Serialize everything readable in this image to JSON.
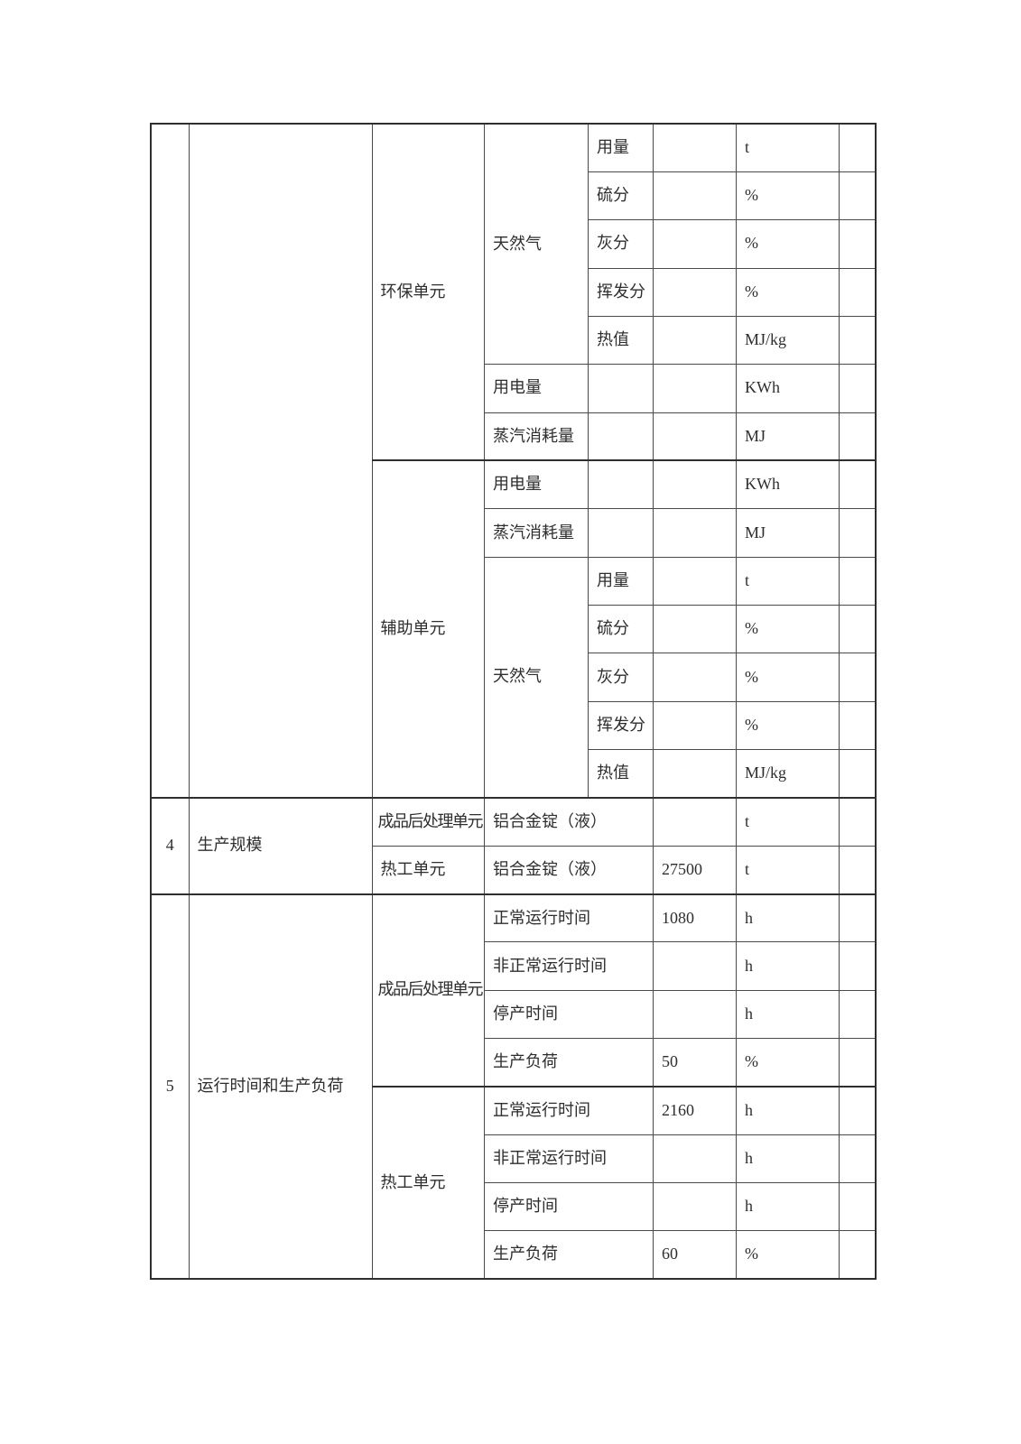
{
  "page": {
    "background_color": "#ffffff",
    "text_color": "#2e2e2e",
    "grid_line_color": "#4a4a4a",
    "section_line_color": "#2f2f2f"
  },
  "table": {
    "description_rows": [
      {
        "cells": [
          {
            "t": "",
            "n": "row-index-cell",
            "rs": 14
          },
          {
            "t": "",
            "n": "category-cell",
            "rs": 14
          },
          {
            "t": "环保单元",
            "n": "unit-group-cell",
            "rs": 7
          },
          {
            "t": "天然气",
            "n": "item-cell",
            "rs": 5
          },
          {
            "t": "用量",
            "n": "sub-item-cell"
          },
          {
            "t": "",
            "n": "value-cell"
          },
          {
            "t": "t",
            "n": "unit-cell"
          },
          {
            "t": "",
            "n": "remark-cell"
          }
        ]
      },
      {
        "cells": [
          {
            "t": "硫分",
            "n": "sub-item-cell"
          },
          {
            "t": "",
            "n": "value-cell"
          },
          {
            "t": "%",
            "n": "unit-cell"
          },
          {
            "t": "",
            "n": "remark-cell"
          }
        ]
      },
      {
        "cells": [
          {
            "t": "灰分",
            "n": "sub-item-cell"
          },
          {
            "t": "",
            "n": "value-cell"
          },
          {
            "t": "%",
            "n": "unit-cell"
          },
          {
            "t": "",
            "n": "remark-cell"
          }
        ]
      },
      {
        "cells": [
          {
            "t": "挥发分",
            "n": "sub-item-cell"
          },
          {
            "t": "",
            "n": "value-cell"
          },
          {
            "t": "%",
            "n": "unit-cell"
          },
          {
            "t": "",
            "n": "remark-cell"
          }
        ]
      },
      {
        "cells": [
          {
            "t": "热值",
            "n": "sub-item-cell"
          },
          {
            "t": "",
            "n": "value-cell"
          },
          {
            "t": "MJ/kg",
            "n": "unit-cell"
          },
          {
            "t": "",
            "n": "remark-cell"
          }
        ]
      },
      {
        "cells": [
          {
            "t": "用电量",
            "n": "item-cell"
          },
          {
            "t": "",
            "n": "sub-item-cell"
          },
          {
            "t": "",
            "n": "value-cell"
          },
          {
            "t": "KWh",
            "n": "unit-cell"
          },
          {
            "t": "",
            "n": "remark-cell"
          }
        ]
      },
      {
        "cells": [
          {
            "t": "蒸汽消耗量",
            "n": "item-cell"
          },
          {
            "t": "",
            "n": "sub-item-cell"
          },
          {
            "t": "",
            "n": "value-cell"
          },
          {
            "t": "MJ",
            "n": "unit-cell"
          },
          {
            "t": "",
            "n": "remark-cell"
          }
        ]
      },
      {
        "thick": true,
        "cells": [
          {
            "t": "辅助单元",
            "n": "unit-group-cell",
            "rs": 7
          },
          {
            "t": "用电量",
            "n": "item-cell"
          },
          {
            "t": "",
            "n": "sub-item-cell"
          },
          {
            "t": "",
            "n": "value-cell"
          },
          {
            "t": "KWh",
            "n": "unit-cell"
          },
          {
            "t": "",
            "n": "remark-cell"
          }
        ]
      },
      {
        "cells": [
          {
            "t": "蒸汽消耗量",
            "n": "item-cell"
          },
          {
            "t": "",
            "n": "sub-item-cell"
          },
          {
            "t": "",
            "n": "value-cell"
          },
          {
            "t": "MJ",
            "n": "unit-cell"
          },
          {
            "t": "",
            "n": "remark-cell"
          }
        ]
      },
      {
        "cells": [
          {
            "t": "天然气",
            "n": "item-cell",
            "rs": 5
          },
          {
            "t": "用量",
            "n": "sub-item-cell"
          },
          {
            "t": "",
            "n": "value-cell"
          },
          {
            "t": "t",
            "n": "unit-cell"
          },
          {
            "t": "",
            "n": "remark-cell"
          }
        ]
      },
      {
        "cells": [
          {
            "t": "硫分",
            "n": "sub-item-cell"
          },
          {
            "t": "",
            "n": "value-cell"
          },
          {
            "t": "%",
            "n": "unit-cell"
          },
          {
            "t": "",
            "n": "remark-cell"
          }
        ]
      },
      {
        "cells": [
          {
            "t": "灰分",
            "n": "sub-item-cell"
          },
          {
            "t": "",
            "n": "value-cell"
          },
          {
            "t": "%",
            "n": "unit-cell"
          },
          {
            "t": "",
            "n": "remark-cell"
          }
        ]
      },
      {
        "cells": [
          {
            "t": "挥发分",
            "n": "sub-item-cell"
          },
          {
            "t": "",
            "n": "value-cell"
          },
          {
            "t": "%",
            "n": "unit-cell"
          },
          {
            "t": "",
            "n": "remark-cell"
          }
        ]
      },
      {
        "cells": [
          {
            "t": "热值",
            "n": "sub-item-cell"
          },
          {
            "t": "",
            "n": "value-cell"
          },
          {
            "t": "MJ/kg",
            "n": "unit-cell"
          },
          {
            "t": "",
            "n": "remark-cell"
          }
        ]
      },
      {
        "thick": true,
        "cells": [
          {
            "t": "4",
            "n": "row-index-cell",
            "rs": 2,
            "center": true
          },
          {
            "t": "生产规模",
            "n": "category-cell",
            "rs": 2
          },
          {
            "t": "成品后处理单元",
            "n": "unit-group-cell",
            "tight": true
          },
          {
            "t": "铝合金锭（液）",
            "n": "item-cell",
            "cs": 2
          },
          {
            "t": "",
            "n": "value-cell"
          },
          {
            "t": "t",
            "n": "unit-cell"
          },
          {
            "t": "",
            "n": "remark-cell"
          }
        ]
      },
      {
        "cells": [
          {
            "t": "热工单元",
            "n": "unit-group-cell"
          },
          {
            "t": "铝合金锭（液）",
            "n": "item-cell",
            "cs": 2
          },
          {
            "t": "27500",
            "n": "value-cell"
          },
          {
            "t": "t",
            "n": "unit-cell"
          },
          {
            "t": "",
            "n": "remark-cell"
          }
        ]
      },
      {
        "thick": true,
        "cells": [
          {
            "t": "5",
            "n": "row-index-cell",
            "rs": 8,
            "center": true
          },
          {
            "t": "运行时间和生产负荷",
            "n": "category-cell",
            "rs": 8
          },
          {
            "t": "成品后处理单元",
            "n": "unit-group-cell",
            "rs": 4,
            "tight": true
          },
          {
            "t": "正常运行时间",
            "n": "item-cell",
            "cs": 2
          },
          {
            "t": "1080",
            "n": "value-cell"
          },
          {
            "t": "h",
            "n": "unit-cell"
          },
          {
            "t": "",
            "n": "remark-cell"
          }
        ]
      },
      {
        "cells": [
          {
            "t": "非正常运行时间",
            "n": "item-cell",
            "cs": 2
          },
          {
            "t": "",
            "n": "value-cell"
          },
          {
            "t": "h",
            "n": "unit-cell"
          },
          {
            "t": "",
            "n": "remark-cell"
          }
        ]
      },
      {
        "cells": [
          {
            "t": "停产时间",
            "n": "item-cell",
            "cs": 2
          },
          {
            "t": "",
            "n": "value-cell"
          },
          {
            "t": "h",
            "n": "unit-cell"
          },
          {
            "t": "",
            "n": "remark-cell"
          }
        ]
      },
      {
        "cells": [
          {
            "t": "生产负荷",
            "n": "item-cell",
            "cs": 2
          },
          {
            "t": "50",
            "n": "value-cell"
          },
          {
            "t": "%",
            "n": "unit-cell"
          },
          {
            "t": "",
            "n": "remark-cell"
          }
        ]
      },
      {
        "thick": true,
        "cells": [
          {
            "t": "热工单元",
            "n": "unit-group-cell",
            "rs": 4
          },
          {
            "t": "正常运行时间",
            "n": "item-cell",
            "cs": 2
          },
          {
            "t": "2160",
            "n": "value-cell"
          },
          {
            "t": "h",
            "n": "unit-cell"
          },
          {
            "t": "",
            "n": "remark-cell"
          }
        ]
      },
      {
        "cells": [
          {
            "t": "非正常运行时间",
            "n": "item-cell",
            "cs": 2
          },
          {
            "t": "",
            "n": "value-cell"
          },
          {
            "t": "h",
            "n": "unit-cell"
          },
          {
            "t": "",
            "n": "remark-cell"
          }
        ]
      },
      {
        "cells": [
          {
            "t": "停产时间",
            "n": "item-cell",
            "cs": 2
          },
          {
            "t": "",
            "n": "value-cell"
          },
          {
            "t": "h",
            "n": "unit-cell"
          },
          {
            "t": "",
            "n": "remark-cell"
          }
        ]
      },
      {
        "cells": [
          {
            "t": "生产负荷",
            "n": "item-cell",
            "cs": 2
          },
          {
            "t": "60",
            "n": "value-cell"
          },
          {
            "t": "%",
            "n": "unit-cell"
          },
          {
            "t": "",
            "n": "remark-cell"
          }
        ]
      }
    ]
  }
}
